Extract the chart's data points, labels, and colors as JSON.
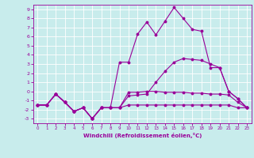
{
  "xlabel": "Windchill (Refroidissement éolien,°C)",
  "background_color": "#c8ecec",
  "grid_color": "#ffffff",
  "line_color": "#990099",
  "x_values": [
    0,
    1,
    2,
    3,
    4,
    5,
    6,
    7,
    8,
    9,
    10,
    11,
    12,
    13,
    14,
    15,
    16,
    17,
    18,
    19,
    20,
    21,
    22,
    23
  ],
  "ylim": [
    -3.5,
    9.5
  ],
  "xlim": [
    -0.5,
    23.5
  ],
  "yticks": [
    -3,
    -2,
    -1,
    0,
    1,
    2,
    3,
    4,
    5,
    6,
    7,
    8,
    9
  ],
  "xticks": [
    0,
    1,
    2,
    3,
    4,
    5,
    6,
    7,
    8,
    9,
    10,
    11,
    12,
    13,
    14,
    15,
    16,
    17,
    18,
    19,
    20,
    21,
    22,
    23
  ],
  "series": {
    "line1": [
      -1.5,
      -1.5,
      -0.3,
      -1.2,
      -2.2,
      -1.8,
      -3.0,
      -1.8,
      -1.8,
      -1.8,
      -0.1,
      -0.1,
      0.0,
      0.0,
      -0.1,
      -0.1,
      -0.1,
      -0.2,
      -0.2,
      -0.3,
      -0.3,
      -0.4,
      -1.2,
      -1.8
    ],
    "line2": [
      -1.5,
      -1.5,
      -0.3,
      -1.2,
      -2.2,
      -1.8,
      -3.0,
      -1.8,
      -1.8,
      3.2,
      3.2,
      6.3,
      7.6,
      6.2,
      7.7,
      9.2,
      8.0,
      6.8,
      6.6,
      2.6,
      2.6,
      0.0,
      -0.8,
      -1.8
    ],
    "line3": [
      -1.5,
      -1.5,
      -0.3,
      -1.2,
      -2.2,
      -1.8,
      -3.0,
      -1.8,
      -1.8,
      -1.8,
      -0.5,
      -0.4,
      -0.3,
      1.0,
      2.2,
      3.2,
      3.6,
      3.5,
      3.4,
      3.0,
      2.6,
      0.0,
      -0.8,
      -1.8
    ],
    "line4": [
      -1.5,
      -1.5,
      -0.3,
      -1.2,
      -2.2,
      -1.8,
      -3.0,
      -1.8,
      -1.8,
      -1.8,
      -1.5,
      -1.5,
      -1.5,
      -1.5,
      -1.5,
      -1.5,
      -1.5,
      -1.5,
      -1.5,
      -1.5,
      -1.5,
      -1.5,
      -1.8,
      -1.8
    ]
  }
}
